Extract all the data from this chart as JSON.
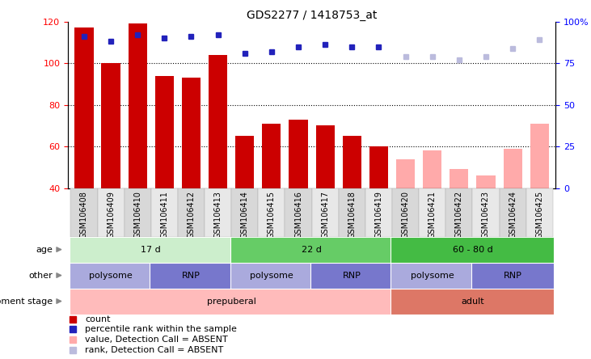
{
  "title": "GDS2277 / 1418753_at",
  "samples": [
    "GSM106408",
    "GSM106409",
    "GSM106410",
    "GSM106411",
    "GSM106412",
    "GSM106413",
    "GSM106414",
    "GSM106415",
    "GSM106416",
    "GSM106417",
    "GSM106418",
    "GSM106419",
    "GSM106420",
    "GSM106421",
    "GSM106422",
    "GSM106423",
    "GSM106424",
    "GSM106425"
  ],
  "bar_values": [
    117,
    100,
    119,
    94,
    93,
    104,
    65,
    71,
    73,
    70,
    65,
    60,
    null,
    null,
    null,
    null,
    null,
    null
  ],
  "bar_values_absent": [
    null,
    null,
    null,
    null,
    null,
    null,
    null,
    null,
    null,
    null,
    null,
    null,
    54,
    58,
    49,
    46,
    59,
    71
  ],
  "rank_values": [
    91,
    88,
    92,
    90,
    91,
    92,
    81,
    82,
    85,
    86,
    85,
    85,
    null,
    null,
    null,
    null,
    null,
    null
  ],
  "rank_values_absent": [
    null,
    null,
    null,
    null,
    null,
    null,
    null,
    null,
    null,
    null,
    null,
    null,
    79,
    79,
    77,
    79,
    84,
    89
  ],
  "ylim_left": [
    40,
    120
  ],
  "ylim_right": [
    0,
    100
  ],
  "yticks_left": [
    40,
    60,
    80,
    100,
    120
  ],
  "yticks_right": [
    0,
    25,
    50,
    75,
    100
  ],
  "ytick_labels_right": [
    "0",
    "25",
    "50",
    "75",
    "100%"
  ],
  "bar_color_present": "#cc0000",
  "bar_color_absent": "#ffaaaa",
  "rank_color_present": "#2222bb",
  "rank_color_absent": "#bbbbdd",
  "grid_dotted_values": [
    60,
    80,
    100
  ],
  "age_groups": [
    {
      "label": "17 d",
      "start": 0,
      "end": 6,
      "color": "#cceecc"
    },
    {
      "label": "22 d",
      "start": 6,
      "end": 12,
      "color": "#66cc66"
    },
    {
      "label": "60 - 80 d",
      "start": 12,
      "end": 18,
      "color": "#44bb44"
    }
  ],
  "other_groups": [
    {
      "label": "polysome",
      "start": 0,
      "end": 3,
      "color": "#aaaadd"
    },
    {
      "label": "RNP",
      "start": 3,
      "end": 6,
      "color": "#7777cc"
    },
    {
      "label": "polysome",
      "start": 6,
      "end": 9,
      "color": "#aaaadd"
    },
    {
      "label": "RNP",
      "start": 9,
      "end": 12,
      "color": "#7777cc"
    },
    {
      "label": "polysome",
      "start": 12,
      "end": 15,
      "color": "#aaaadd"
    },
    {
      "label": "RNP",
      "start": 15,
      "end": 18,
      "color": "#7777cc"
    }
  ],
  "dev_groups": [
    {
      "label": "prepuberal",
      "start": 0,
      "end": 12,
      "color": "#ffbbbb"
    },
    {
      "label": "adult",
      "start": 12,
      "end": 18,
      "color": "#dd7766"
    }
  ],
  "row_labels": [
    "age",
    "other",
    "development stage"
  ],
  "legend_items": [
    {
      "label": "count",
      "color": "#cc0000"
    },
    {
      "label": "percentile rank within the sample",
      "color": "#2222bb"
    },
    {
      "label": "value, Detection Call = ABSENT",
      "color": "#ffaaaa"
    },
    {
      "label": "rank, Detection Call = ABSENT",
      "color": "#bbbbdd"
    }
  ]
}
